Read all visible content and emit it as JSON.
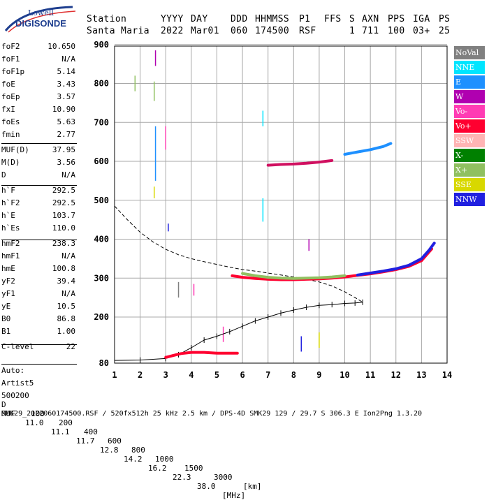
{
  "logo": {
    "line1": "Lowell",
    "line2": "DIGISONDE"
  },
  "header": {
    "labels": [
      "Station",
      "YYYY",
      "DAY",
      "DDD",
      "HHMMSS",
      "P1",
      "FFS",
      "S",
      "AXN",
      "PPS",
      "IGA",
      "PS"
    ],
    "values": [
      "Santa Maria",
      "2022",
      "Mar01",
      "060",
      "174500",
      "RSF",
      "1",
      "711",
      "100",
      "03+",
      "25"
    ]
  },
  "params": {
    "group1": [
      {
        "label": "foF2",
        "value": "10.650"
      },
      {
        "label": "foF1",
        "value": "N/A"
      },
      {
        "label": "foF1p",
        "value": "5.14"
      },
      {
        "label": "foE",
        "value": "3.43"
      },
      {
        "label": "foEp",
        "value": "3.57"
      },
      {
        "label": "fxI",
        "value": "10.90"
      },
      {
        "label": "foEs",
        "value": "5.63"
      },
      {
        "label": "fmin",
        "value": "2.77"
      }
    ],
    "group2": [
      {
        "label": "MUF(D)",
        "value": "37.95"
      },
      {
        "label": "M(D)",
        "value": "3.56"
      },
      {
        "label": "D",
        "value": "N/A"
      }
    ],
    "group3": [
      {
        "label": "h`F",
        "value": "292.5"
      },
      {
        "label": "h`F2",
        "value": "292.5"
      },
      {
        "label": "h`E",
        "value": "103.7"
      },
      {
        "label": "h`Es",
        "value": "110.0"
      }
    ],
    "group4": [
      {
        "label": "hmF2",
        "value": "238.3"
      },
      {
        "label": "hmF1",
        "value": "N/A"
      },
      {
        "label": "hmE",
        "value": "100.8"
      },
      {
        "label": "yF2",
        "value": "39.4"
      },
      {
        "label": "yF1",
        "value": "N/A"
      },
      {
        "label": "yE",
        "value": "10.5"
      },
      {
        "label": "B0",
        "value": "86.8"
      },
      {
        "label": "B1",
        "value": "1.00"
      }
    ],
    "group5": [
      {
        "label": "C-level",
        "value": "22"
      }
    ]
  },
  "auto": {
    "line1": "Auto:",
    "line2": "Artist5",
    "line3": "500200"
  },
  "legend": [
    {
      "label": "NoVal",
      "color": "#808080"
    },
    {
      "label": "NNE",
      "color": "#00e5ff"
    },
    {
      "label": "E",
      "color": "#1e90ff"
    },
    {
      "label": "W",
      "color": "#b000b0"
    },
    {
      "label": "Vo-",
      "color": "#ff3cb4"
    },
    {
      "label": "Vo+",
      "color": "#ff0030"
    },
    {
      "label": "SSW",
      "color": "#ffb4b4"
    },
    {
      "label": "X-",
      "color": "#008000"
    },
    {
      "label": "X+",
      "color": "#90c060"
    },
    {
      "label": "SSE",
      "color": "#d8d800"
    },
    {
      "label": "NNW",
      "color": "#2020e0"
    }
  ],
  "bottom": {
    "d_label": "D",
    "d_values": [
      "100",
      "200",
      "400",
      "600",
      "800",
      "1000",
      "1500",
      "3000"
    ],
    "d_unit": "[km]",
    "muf_label": "MUF",
    "muf_values": [
      "11.0",
      "11.1",
      "11.7",
      "12.8",
      "14.2",
      "16.2",
      "22.3",
      "38.0"
    ],
    "muf_unit": "[MHz]",
    "footer": "SMK29_2022060174500.RSF / 520fx512h 25 kHz 2.5 km / DPS-4D SMK29 129 / 29.7 S 306.3 E Ion2Png 1.3.20"
  },
  "chart_data": {
    "type": "scatter",
    "x_range": [
      1,
      14
    ],
    "y_range": [
      80,
      900
    ],
    "x_ticks": [
      1,
      2,
      3,
      4,
      5,
      6,
      7,
      8,
      9,
      10,
      11,
      12,
      13,
      14
    ],
    "y_ticks": [
      80,
      200,
      300,
      400,
      500,
      600,
      700,
      800,
      900
    ],
    "grid": true,
    "series": [
      {
        "name": "",
        "type": "line",
        "x": [
          1.0,
          2.0,
          3.0,
          3.5,
          4.0,
          4.5,
          5.0,
          5.5,
          6.0,
          6.5,
          7.0,
          7.5,
          8.0,
          8.5,
          9.0,
          9.5,
          10.0,
          10.4,
          10.7
        ],
        "y": [
          87,
          88,
          92,
          102,
          120,
          140,
          150,
          162,
          176,
          190,
          200,
          210,
          218,
          225,
          230,
          232,
          235,
          236,
          238
        ]
      },
      {
        "name": "",
        "type": "dashed",
        "x": [
          1.0,
          1.5,
          2.0,
          2.5,
          3.0,
          3.5,
          4.0,
          4.5,
          5.0,
          5.5,
          6.0,
          6.5,
          7.0,
          7.5,
          8.0,
          8.5,
          9.0,
          9.5,
          10.0,
          10.4,
          10.7
        ],
        "y": [
          485,
          450,
          418,
          393,
          374,
          360,
          350,
          342,
          335,
          328,
          322,
          318,
          313,
          308,
          303,
          297,
          290,
          280,
          265,
          250,
          238
        ]
      },
      {
        "name": "",
        "type": "trace",
        "color": "#ff0030",
        "x": [
          5.6,
          6.0,
          6.5,
          7.0,
          7.5,
          8.0,
          8.5,
          9.0,
          9.5,
          10.0,
          10.5,
          11.0,
          11.5,
          12.0,
          12.5,
          13.0,
          13.4
        ],
        "y": [
          306,
          302,
          299,
          297,
          296,
          296,
          297,
          298,
          300,
          303,
          307,
          311,
          316,
          322,
          330,
          345,
          375
        ]
      },
      {
        "name": "",
        "type": "trace",
        "color": "#90c060",
        "x": [
          6.0,
          6.5,
          7.0,
          7.5,
          8.0,
          8.5,
          9.0,
          9.5,
          10.0
        ],
        "y": [
          312,
          306,
          302,
          300,
          299,
          300,
          301,
          303,
          306
        ]
      },
      {
        "name": "",
        "type": "trace",
        "color": "#2020e0",
        "x": [
          10.5,
          11.0,
          11.5,
          12.0,
          12.5,
          13.0,
          13.3,
          13.5
        ],
        "y": [
          308,
          313,
          318,
          324,
          333,
          350,
          372,
          390
        ]
      },
      {
        "name": "",
        "type": "trace",
        "color": "#d01060",
        "x": [
          7.0,
          7.5,
          8.0,
          8.5,
          9.0,
          9.5
        ],
        "y": [
          590,
          592,
          593,
          595,
          598,
          602
        ]
      },
      {
        "name": "",
        "type": "trace",
        "color": "#1e90ff",
        "x": [
          10.0,
          10.5,
          11.0,
          11.5,
          11.8
        ],
        "y": [
          618,
          624,
          630,
          638,
          646
        ]
      },
      {
        "name": "",
        "type": "trace",
        "color": "#ff0030",
        "x": [
          3.0,
          3.3,
          3.6,
          4.0,
          4.5,
          5.0,
          5.5,
          5.8
        ],
        "y": [
          95,
          100,
          105,
          108,
          108,
          106,
          106,
          106
        ]
      }
    ]
  }
}
